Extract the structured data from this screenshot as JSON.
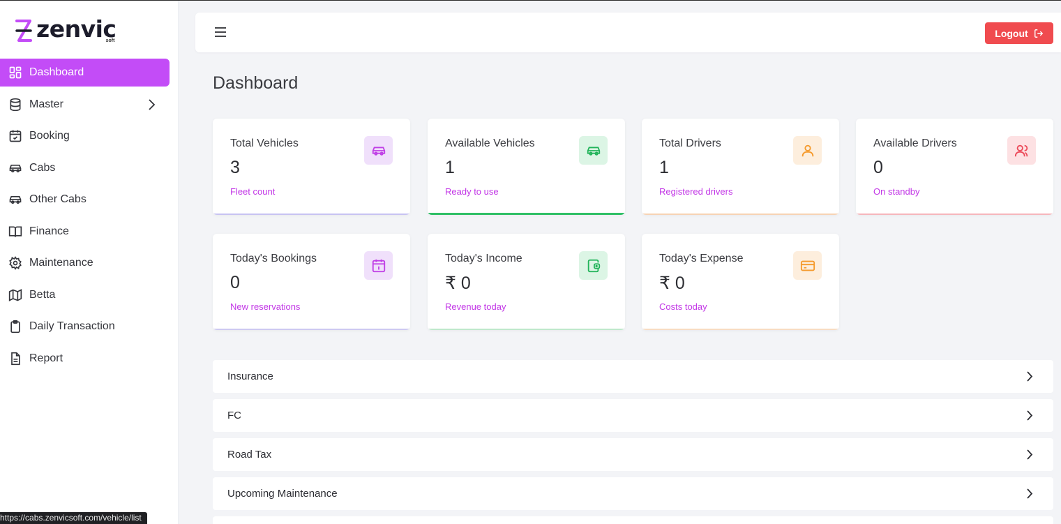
{
  "brand": {
    "name": "zenvic",
    "sub": "soft"
  },
  "sidebar": {
    "items": [
      {
        "label": "Dashboard",
        "icon": "dashboard-grid-icon",
        "active": true
      },
      {
        "label": "Master",
        "icon": "database-icon",
        "has_submenu": true
      },
      {
        "label": "Booking",
        "icon": "calendar-check-icon"
      },
      {
        "label": "Cabs",
        "icon": "car-icon"
      },
      {
        "label": "Other Cabs",
        "icon": "car-icon"
      },
      {
        "label": "Finance",
        "icon": "book-open-icon"
      },
      {
        "label": "Maintenance",
        "icon": "gear-icon"
      },
      {
        "label": "Betta",
        "icon": "map-icon"
      },
      {
        "label": "Daily Transaction",
        "icon": "clipboard-icon"
      },
      {
        "label": "Report",
        "icon": "file-text-icon"
      }
    ]
  },
  "topbar": {
    "logout_label": "Logout"
  },
  "page": {
    "title": "Dashboard"
  },
  "cards": [
    {
      "title": "Total Vehicles",
      "value": "3",
      "sub": "Fleet count",
      "icon": "car-icon",
      "accent": "#c03fe6",
      "icon_bg": "#f0e0fb",
      "bar": "#c7c3f2"
    },
    {
      "title": "Available Vehicles",
      "value": "1",
      "sub": "Ready to use",
      "icon": "car-icon",
      "accent": "#22b45a",
      "icon_bg": "#dcf5e5",
      "bar": "#2fbf66"
    },
    {
      "title": "Total Drivers",
      "value": "1",
      "sub": "Registered drivers",
      "icon": "user-icon",
      "accent": "#f59a2c",
      "icon_bg": "#fdeedd",
      "bar": "#f7d3b4"
    },
    {
      "title": "Available Drivers",
      "value": "0",
      "sub": "On standby",
      "icon": "users-icon",
      "accent": "#ec4b5a",
      "icon_bg": "#fde1e3",
      "bar": "#f6b6bc"
    },
    {
      "title": "Today's Bookings",
      "value": "0",
      "sub": "New reservations",
      "icon": "calendar-icon",
      "accent": "#c03fe6",
      "icon_bg": "#f0e0fb",
      "bar": "#cdc9f1"
    },
    {
      "title": "Today's Income",
      "value": "₹ 0",
      "sub": "Revenue today",
      "icon": "wallet-icon",
      "accent": "#22b45a",
      "icon_bg": "#dcf5e5",
      "bar": "#bfe8cc"
    },
    {
      "title": "Today's Expense",
      "value": "₹ 0",
      "sub": "Costs today",
      "icon": "credit-card-icon",
      "accent": "#f59a2c",
      "icon_bg": "#fdeedd",
      "bar": "#f7dcc3"
    }
  ],
  "sections": [
    {
      "label": "Insurance"
    },
    {
      "label": "FC"
    },
    {
      "label": "Road Tax"
    },
    {
      "label": "Upcoming Maintenance"
    }
  ],
  "status_bar": {
    "url": "https://cabs.zenvicsoft.com/vehicle/list"
  }
}
